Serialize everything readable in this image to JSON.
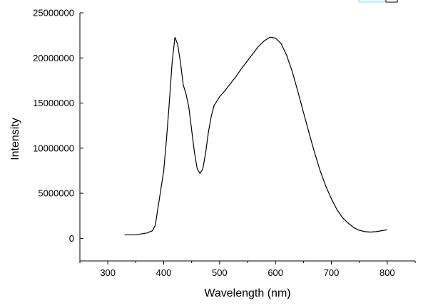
{
  "chart_data": {
    "type": "line",
    "xlabel": "Wavelength (nm)",
    "ylabel": "Intensity",
    "xlim": [
      250,
      850
    ],
    "ylim": [
      -2500000,
      25000000
    ],
    "x_ticks": [
      300,
      400,
      500,
      600,
      700,
      800
    ],
    "y_ticks": [
      0,
      5000000,
      10000000,
      15000000,
      20000000,
      25000000
    ],
    "x_tick_labels": [
      "300",
      "400",
      "500",
      "600",
      "700",
      "800"
    ],
    "y_tick_labels": [
      "0",
      "5000000",
      "10000000",
      "15000000",
      "20000000",
      "25000000"
    ],
    "grid": false,
    "series": [
      {
        "color": "#000000",
        "points": [
          [
            330,
            400000
          ],
          [
            350,
            400000
          ],
          [
            370,
            600000
          ],
          [
            380,
            850000
          ],
          [
            385,
            1500000
          ],
          [
            390,
            3500000
          ],
          [
            395,
            5500000
          ],
          [
            400,
            7500000
          ],
          [
            405,
            11000000
          ],
          [
            410,
            15000000
          ],
          [
            415,
            19500000
          ],
          [
            420,
            22300000
          ],
          [
            425,
            21500000
          ],
          [
            430,
            19500000
          ],
          [
            435,
            17000000
          ],
          [
            440,
            16000000
          ],
          [
            445,
            14500000
          ],
          [
            450,
            12000000
          ],
          [
            455,
            9500000
          ],
          [
            460,
            7700000
          ],
          [
            465,
            7200000
          ],
          [
            470,
            7700000
          ],
          [
            475,
            9500000
          ],
          [
            480,
            11800000
          ],
          [
            485,
            13500000
          ],
          [
            490,
            14700000
          ],
          [
            500,
            15700000
          ],
          [
            510,
            16400000
          ],
          [
            520,
            17200000
          ],
          [
            530,
            18000000
          ],
          [
            540,
            18900000
          ],
          [
            550,
            19700000
          ],
          [
            560,
            20500000
          ],
          [
            570,
            21300000
          ],
          [
            580,
            21900000
          ],
          [
            590,
            22300000
          ],
          [
            600,
            22200000
          ],
          [
            610,
            21600000
          ],
          [
            620,
            20300000
          ],
          [
            630,
            18500000
          ],
          [
            640,
            16300000
          ],
          [
            650,
            14000000
          ],
          [
            660,
            11700000
          ],
          [
            670,
            9500000
          ],
          [
            680,
            7500000
          ],
          [
            690,
            5800000
          ],
          [
            700,
            4400000
          ],
          [
            710,
            3200000
          ],
          [
            720,
            2300000
          ],
          [
            730,
            1700000
          ],
          [
            740,
            1200000
          ],
          [
            750,
            900000
          ],
          [
            760,
            750000
          ],
          [
            770,
            700000
          ],
          [
            780,
            750000
          ],
          [
            790,
            850000
          ],
          [
            800,
            950000
          ]
        ]
      }
    ]
  }
}
